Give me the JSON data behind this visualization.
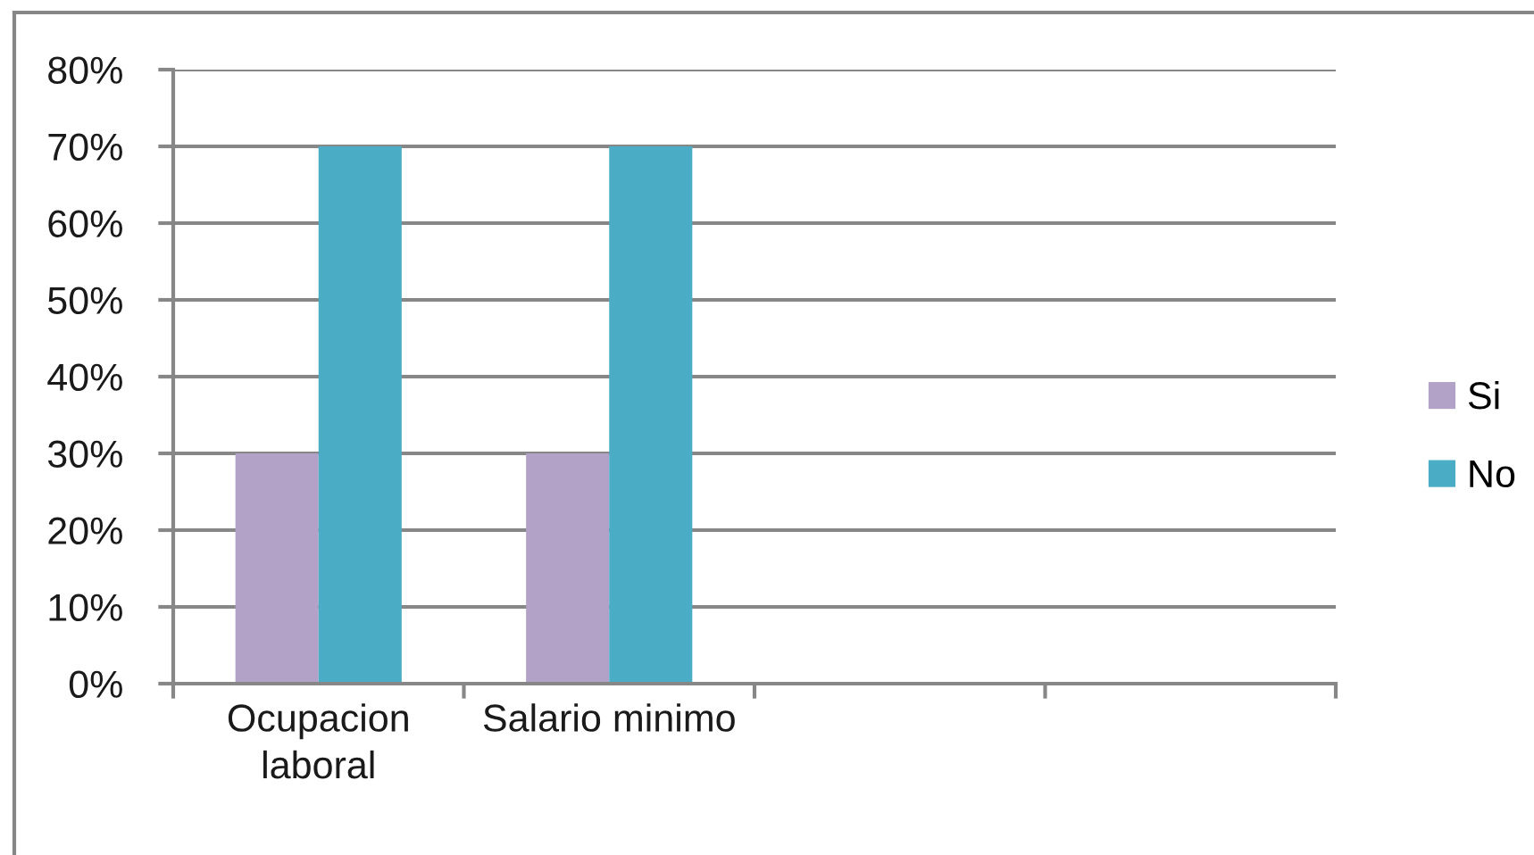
{
  "chart_data": {
    "type": "bar",
    "categories": [
      "Ocupacion laboral",
      "Salario minimo",
      null,
      null
    ],
    "series": [
      {
        "name": "Si",
        "color": "#b3a2c7",
        "values": [
          30,
          30,
          null,
          null
        ]
      },
      {
        "name": "No",
        "color": "#4bacc6",
        "values": [
          70,
          70,
          null,
          null
        ]
      }
    ],
    "ylim": [
      0,
      80
    ],
    "yticks": [
      {
        "value": 0,
        "label": "0%"
      },
      {
        "value": 10,
        "label": "10%"
      },
      {
        "value": 20,
        "label": "20%"
      },
      {
        "value": 30,
        "label": "30%"
      },
      {
        "value": 40,
        "label": "40%"
      },
      {
        "value": 50,
        "label": "50%"
      },
      {
        "value": 60,
        "label": "60%"
      },
      {
        "value": 70,
        "label": "70%"
      },
      {
        "value": 80,
        "label": "80%"
      }
    ],
    "grid": "y",
    "legend": "right"
  }
}
